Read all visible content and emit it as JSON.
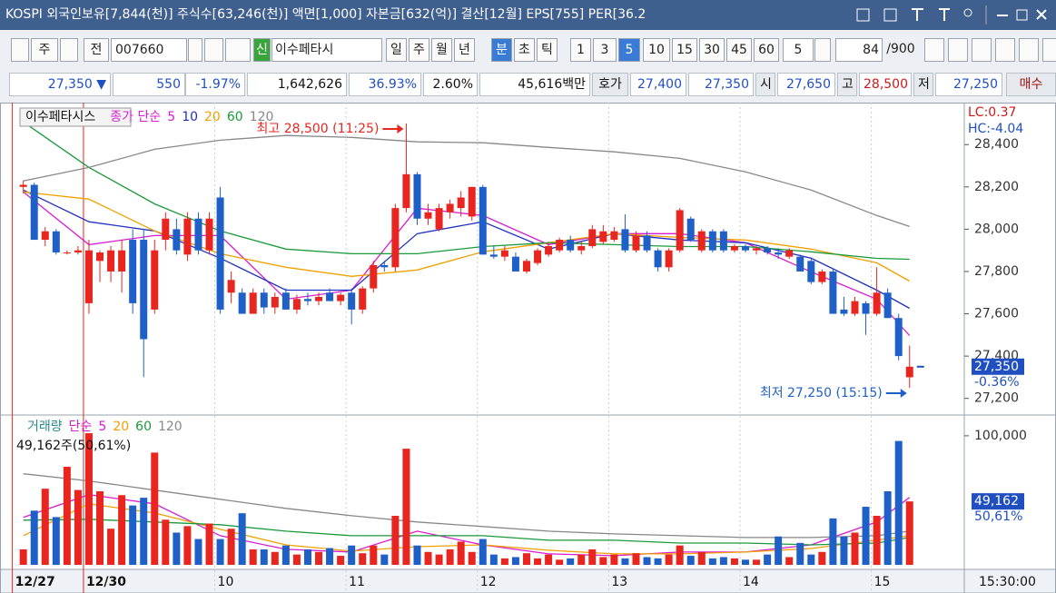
{
  "title_bar": {
    "text": "KOSPI 외국인보유[7,844(천)] 주식수[63,246(천)] 액면[1,000] 자본금[632(억)] 결산[12월] EPS[755] PER[36.2"
  },
  "toolbar": {
    "market": "주",
    "prev": "전",
    "code": "007660",
    "badge": "신",
    "name": "이수페타시",
    "periods": [
      "일",
      "주",
      "월",
      "년",
      "분",
      "초",
      "틱"
    ],
    "selected_period": 4,
    "intervals": [
      "1",
      "3",
      "5",
      "10",
      "15",
      "30",
      "45",
      "60"
    ],
    "selected_interval": 2,
    "interval_select": "5",
    "count": "84",
    "count_max": "/900"
  },
  "quote_bar": {
    "price": "27,350 ▼",
    "change": "550",
    "change_rate": "-1.97%",
    "volume": "1,642,626",
    "rate1": "36.93%",
    "rate2": "2.60%",
    "amount": "45,616백만",
    "ask_label": "호가",
    "ask": "27,400",
    "bid": "27,350",
    "open_label": "시",
    "open": "27,650",
    "high_label": "고",
    "high": "28,500",
    "low_label": "저",
    "low": "27,250",
    "buy": "매수"
  },
  "chart_data": [
    {
      "type": "candlestick",
      "title": "이수페타시스",
      "ma_label": "종가 단순",
      "ma_label_color": "#d81bd0",
      "up_color": "#e8251f",
      "down_color": "#1f5fc8",
      "day_line_color": "#e8251f",
      "xlim": [
        -1.3,
        86.0
      ],
      "xticks": [
        {
          "value": -1,
          "label": "12/27"
        },
        {
          "value": 5.5,
          "label": "12/30"
        },
        {
          "value": 17.5,
          "label": "10"
        },
        {
          "value": 29.5,
          "label": "11"
        },
        {
          "value": 41.5,
          "label": "12"
        },
        {
          "value": 53.5,
          "label": "13"
        },
        {
          "value": 65.5,
          "label": "14"
        },
        {
          "value": 77.5,
          "label": "15"
        }
      ],
      "ylim": [
        27130,
        28590
      ],
      "yticks": [
        {
          "value": 27200,
          "label": "27,200"
        },
        {
          "value": 27400,
          "label": "27,400"
        },
        {
          "value": 27600,
          "label": "27,600"
        },
        {
          "value": 27800,
          "label": "27,800"
        },
        {
          "value": 28000,
          "label": "28,000"
        },
        {
          "value": 28200,
          "label": "28,200"
        },
        {
          "value": 28400,
          "label": "28,400"
        }
      ],
      "ohlc": [
        [
          28200,
          28230,
          28170,
          28210
        ],
        [
          28210,
          28220,
          27950,
          27950
        ],
        [
          27950,
          28010,
          27920,
          27990
        ],
        [
          27990,
          28000,
          27880,
          27890
        ],
        [
          27890,
          27900,
          27880,
          27890
        ],
        [
          27890,
          27920,
          27880,
          27900
        ],
        [
          27650,
          27950,
          27600,
          27900
        ],
        [
          27850,
          27900,
          27750,
          27890
        ],
        [
          27800,
          27920,
          27750,
          27900
        ],
        [
          27800,
          27950,
          27700,
          27900
        ],
        [
          27950,
          28000,
          27600,
          27650
        ],
        [
          27950,
          28000,
          27300,
          27480
        ],
        [
          27620,
          27950,
          27600,
          27900
        ],
        [
          27950,
          28080,
          27900,
          28050
        ],
        [
          28000,
          28050,
          27880,
          27900
        ],
        [
          27880,
          28080,
          27850,
          28050
        ],
        [
          28050,
          28080,
          27880,
          27900
        ],
        [
          27900,
          28080,
          27880,
          28050
        ],
        [
          28150,
          28200,
          27600,
          27620
        ],
        [
          27700,
          27800,
          27650,
          27760
        ],
        [
          27700,
          27720,
          27600,
          27600
        ],
        [
          27600,
          27720,
          27600,
          27700
        ],
        [
          27700,
          27720,
          27600,
          27630
        ],
        [
          27630,
          27700,
          27600,
          27680
        ],
        [
          27700,
          27720,
          27620,
          27620
        ],
        [
          27620,
          27690,
          27600,
          27670
        ],
        [
          27670,
          27700,
          27640,
          27660
        ],
        [
          27660,
          27700,
          27640,
          27680
        ],
        [
          27700,
          27720,
          27660,
          27660
        ],
        [
          27660,
          27700,
          27640,
          27690
        ],
        [
          27700,
          27720,
          27550,
          27620
        ],
        [
          27620,
          27730,
          27600,
          27720
        ],
        [
          27720,
          27850,
          27700,
          27830
        ],
        [
          27830,
          27850,
          27800,
          27820
        ],
        [
          27820,
          28120,
          27800,
          28100
        ],
        [
          28100,
          28500,
          28080,
          28260
        ],
        [
          28260,
          28270,
          28020,
          28050
        ],
        [
          28050,
          28120,
          28020,
          28080
        ],
        [
          28000,
          28120,
          27990,
          28100
        ],
        [
          28080,
          28140,
          28050,
          28120
        ],
        [
          28100,
          28180,
          28060,
          28150
        ],
        [
          28060,
          28200,
          28040,
          28200
        ],
        [
          28200,
          28210,
          27880,
          27880
        ],
        [
          27880,
          27920,
          27860,
          27870
        ],
        [
          27870,
          27920,
          27850,
          27900
        ],
        [
          27870,
          27890,
          27800,
          27800
        ],
        [
          27800,
          27860,
          27790,
          27850
        ],
        [
          27840,
          27910,
          27830,
          27900
        ],
        [
          27880,
          27940,
          27870,
          27920
        ],
        [
          27900,
          27960,
          27890,
          27950
        ],
        [
          27950,
          27970,
          27890,
          27900
        ],
        [
          27900,
          27940,
          27880,
          27920
        ],
        [
          27920,
          28020,
          27910,
          28000
        ],
        [
          27940,
          28020,
          27930,
          27990
        ],
        [
          27950,
          28010,
          27940,
          27990
        ],
        [
          28000,
          28070,
          27890,
          27900
        ],
        [
          27900,
          27990,
          27890,
          27970
        ],
        [
          27970,
          27990,
          27890,
          27900
        ],
        [
          27900,
          27910,
          27800,
          27820
        ],
        [
          27820,
          27910,
          27800,
          27900
        ],
        [
          27900,
          28100,
          27890,
          28090
        ],
        [
          28050,
          28060,
          27940,
          27950
        ],
        [
          27900,
          28000,
          27890,
          27990
        ],
        [
          27990,
          28000,
          27890,
          27900
        ],
        [
          27990,
          28000,
          27890,
          27900
        ],
        [
          27900,
          27930,
          27890,
          27920
        ],
        [
          27920,
          27930,
          27890,
          27900
        ],
        [
          27900,
          27920,
          27880,
          27910
        ],
        [
          27910,
          27920,
          27880,
          27890
        ],
        [
          27890,
          27910,
          27860,
          27880
        ],
        [
          27870,
          27910,
          27860,
          27900
        ],
        [
          27870,
          27880,
          27800,
          27800
        ],
        [
          27850,
          27860,
          27740,
          27750
        ],
        [
          27750,
          27810,
          27740,
          27800
        ],
        [
          27800,
          27810,
          27600,
          27600
        ],
        [
          27620,
          27680,
          27590,
          27600
        ],
        [
          27600,
          27680,
          27590,
          27660
        ],
        [
          27650,
          27660,
          27500,
          27600
        ],
        [
          27600,
          27820,
          27590,
          27700
        ],
        [
          27700,
          27720,
          27580,
          27580
        ],
        [
          27580,
          27600,
          27380,
          27400
        ],
        [
          27300,
          27450,
          27250,
          27350
        ]
      ],
      "series": [
        {
          "name": "5",
          "color": "#d81bd0",
          "x": [
            0,
            6,
            12,
            18,
            24,
            30,
            36,
            42,
            48,
            54,
            60,
            66,
            72,
            78,
            81
          ],
          "values": [
            28176,
            27927,
            27970,
            27970,
            27669,
            27712,
            28099,
            28065,
            27927,
            27979,
            27979,
            27936,
            27798,
            27669,
            27497
          ]
        },
        {
          "name": "10",
          "color": "#2030c0",
          "x": [
            0,
            6,
            12,
            18,
            24,
            30,
            36,
            42,
            48,
            54,
            60,
            66,
            72,
            78,
            81
          ],
          "values": [
            28185,
            28035,
            27992,
            27863,
            27712,
            27712,
            27979,
            28035,
            27906,
            27979,
            27949,
            27936,
            27863,
            27712,
            27626
          ]
        },
        {
          "name": "20",
          "color": "#f0a000",
          "x": [
            0,
            6,
            12,
            18,
            24,
            30,
            36,
            42,
            48,
            54,
            60,
            66,
            72,
            78,
            81
          ],
          "values": [
            28176,
            28142,
            27992,
            27884,
            27820,
            27777,
            27807,
            27893,
            27936,
            27979,
            27961,
            27949,
            27906,
            27841,
            27755
          ]
        },
        {
          "name": "60",
          "color": "#1a9a3a",
          "x": [
            0,
            6,
            12,
            18,
            24,
            30,
            36,
            42,
            48,
            54,
            60,
            66,
            72,
            78,
            81
          ],
          "values": [
            28507,
            28292,
            28120,
            27992,
            27906,
            27884,
            27884,
            27918,
            27936,
            27927,
            27918,
            27918,
            27893,
            27862,
            27858
          ]
        },
        {
          "name": "120",
          "color": "#888888",
          "x": [
            0,
            6,
            12,
            18,
            24,
            30,
            36,
            42,
            48,
            54,
            60,
            66,
            72,
            78,
            81
          ],
          "values": [
            28228,
            28292,
            28378,
            28421,
            28443,
            28434,
            28413,
            28409,
            28387,
            28366,
            28335,
            28271,
            28185,
            28065,
            28013
          ]
        }
      ],
      "annotations": [
        {
          "text": "최고 28,500 (11:25)",
          "x": 35,
          "y": 28500,
          "color": "#e8251f"
        },
        {
          "text": "최저 27,250 (15:15)",
          "x": 81,
          "y": 27250,
          "color": "#1f5fc8"
        }
      ],
      "last_price": {
        "value": 27350,
        "label": "27,350"
      },
      "last_change": "-0.36%",
      "lc": "LC:0.37",
      "hc": "HC:-4.04"
    },
    {
      "type": "bar",
      "title": "거래량",
      "title_color": "#2a8a8a",
      "ma_label": "단순",
      "ma_label_color": "#d81bd0",
      "values": [
        12000,
        42000,
        59000,
        37000,
        76000,
        58000,
        102000,
        57000,
        28000,
        54000,
        46000,
        52000,
        87000,
        35000,
        25000,
        30000,
        20000,
        32000,
        20000,
        28000,
        40000,
        12000,
        12000,
        10000,
        15000,
        8000,
        12000,
        10000,
        13000,
        7000,
        15000,
        9000,
        15000,
        8000,
        38000,
        90000,
        15000,
        10000,
        8000,
        12000,
        18000,
        10000,
        20000,
        8000,
        5000,
        6000,
        9000,
        5000,
        8000,
        4000,
        5000,
        8000,
        12000,
        6000,
        8000,
        5000,
        9000,
        6000,
        5000,
        8000,
        15000,
        7000,
        10000,
        5000,
        6000,
        5000,
        4000,
        4000,
        8000,
        22000,
        6000,
        17000,
        8000,
        10000,
        36000,
        22000,
        25000,
        45000,
        38000,
        57000,
        96000,
        49162
      ],
      "ylim": [
        0,
        114000
      ],
      "yticks": [
        {
          "value": 100000,
          "label": "100,000"
        }
      ],
      "series": [
        {
          "name": "5",
          "color": "#d81bd0",
          "x": [
            0,
            6,
            12,
            18,
            24,
            30,
            36,
            42,
            48,
            54,
            60,
            66,
            72,
            78,
            81
          ],
          "values": [
            36700,
            54400,
            47300,
            22600,
            12000,
            9900,
            26100,
            15500,
            8500,
            7100,
            9900,
            9900,
            15500,
            33200,
            52200
          ]
        },
        {
          "name": "20",
          "color": "#f0a000",
          "x": [
            0,
            6,
            12,
            18,
            24,
            30,
            36,
            42,
            48,
            54,
            60,
            66,
            72,
            78,
            81
          ],
          "values": [
            22600,
            47300,
            40200,
            27500,
            15500,
            10600,
            14100,
            15500,
            11300,
            8500,
            8500,
            9900,
            12700,
            19100,
            22600
          ]
        },
        {
          "name": "60",
          "color": "#1a9a3a",
          "x": [
            0,
            6,
            12,
            18,
            24,
            30,
            36,
            42,
            48,
            54,
            60,
            66,
            72,
            78,
            81
          ],
          "values": [
            34600,
            35300,
            33200,
            31100,
            26100,
            22600,
            22600,
            22600,
            19100,
            19100,
            16900,
            16900,
            15500,
            16900,
            21200
          ]
        },
        {
          "name": "120",
          "color": "#888888",
          "x": [
            0,
            6,
            12,
            18,
            24,
            30,
            36,
            42,
            48,
            54,
            60,
            66,
            72,
            78,
            81
          ],
          "values": [
            70600,
            65000,
            57900,
            50800,
            43800,
            38100,
            33200,
            29700,
            26100,
            24000,
            22600,
            21200,
            21200,
            22600,
            26100
          ]
        }
      ],
      "info": "49,162주(50,61%)",
      "last_value": {
        "value": 49162,
        "label": "49,162"
      },
      "last_rate": "50,61%"
    }
  ],
  "time_label": "15:30:00"
}
